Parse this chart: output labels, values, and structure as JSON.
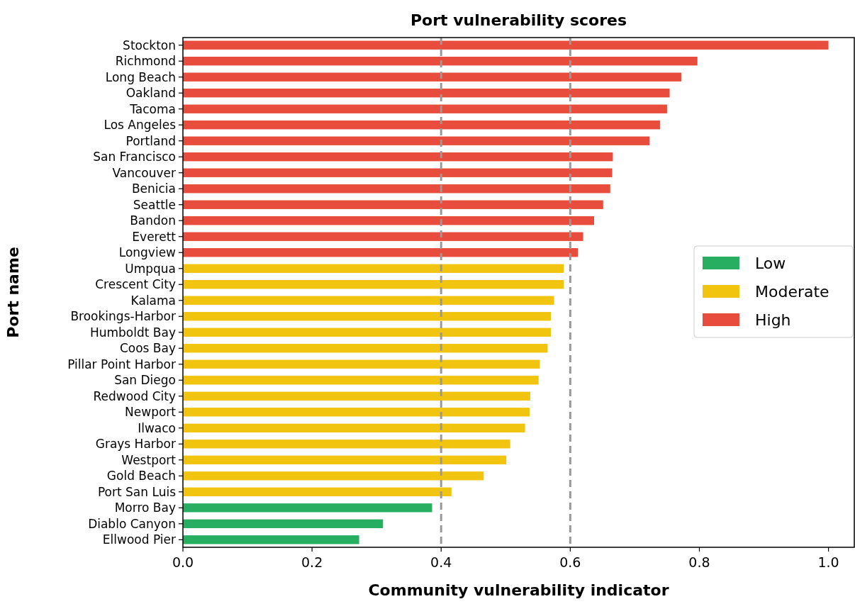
{
  "chart_data": {
    "type": "bar",
    "orientation": "horizontal",
    "title": "Port vulnerability scores",
    "xlabel": "Community vulnerability indicator",
    "ylabel": "Port name",
    "categories": [
      "Stockton",
      "Richmond",
      "Long Beach",
      "Oakland",
      "Tacoma",
      "Los Angeles",
      "Portland",
      "San Francisco",
      "Vancouver",
      "Benicia",
      "Seattle",
      "Bandon",
      "Everett",
      "Longview",
      "Umpqua",
      "Crescent City",
      "Kalama",
      "Brookings-Harbor",
      "Humboldt Bay",
      "Coos Bay",
      "Pillar Point Harbor",
      "San Diego",
      "Redwood City",
      "Newport",
      "Ilwaco",
      "Grays Harbor",
      "Westport",
      "Gold Beach",
      "Port San Luis",
      "Morro Bay",
      "Diablo Canyon",
      "Ellwood Pier"
    ],
    "series": [
      {
        "name": "Low",
        "color": "#27ae60",
        "values": [
          null,
          null,
          null,
          null,
          null,
          null,
          null,
          null,
          null,
          null,
          null,
          null,
          null,
          null,
          null,
          null,
          null,
          null,
          null,
          null,
          null,
          null,
          null,
          null,
          null,
          null,
          null,
          null,
          null,
          0.386,
          0.31,
          0.273
        ]
      },
      {
        "name": "Moderate",
        "color": "#f1c40f",
        "values": [
          null,
          null,
          null,
          null,
          null,
          null,
          null,
          null,
          null,
          null,
          null,
          null,
          null,
          null,
          0.59,
          0.59,
          0.575,
          0.57,
          0.57,
          0.565,
          0.553,
          0.551,
          0.538,
          0.537,
          0.53,
          0.507,
          0.501,
          0.466,
          0.416,
          null,
          null,
          null
        ]
      },
      {
        "name": "High",
        "color": "#e74c3c",
        "values": [
          1.0,
          0.797,
          0.772,
          0.754,
          0.75,
          0.739,
          0.723,
          0.666,
          0.665,
          0.662,
          0.651,
          0.637,
          0.62,
          0.612,
          null,
          null,
          null,
          null,
          null,
          null,
          null,
          null,
          null,
          null,
          null,
          null,
          null,
          null,
          null,
          null,
          null,
          null
        ]
      }
    ],
    "xlim": [
      0,
      1.04
    ],
    "xticks": [
      {
        "value": 0,
        "label": "0.0"
      },
      0.2,
      0.4,
      0.6,
      0.8,
      {
        "value": 1,
        "label": "1.0"
      }
    ],
    "ref_lines": [
      {
        "axis": "x",
        "value": 0.4,
        "color": "#999999",
        "line_style": "dashed"
      },
      {
        "axis": "x",
        "value": 0.6,
        "color": "#999999",
        "line_style": "dashed"
      }
    ],
    "legend": "right"
  }
}
